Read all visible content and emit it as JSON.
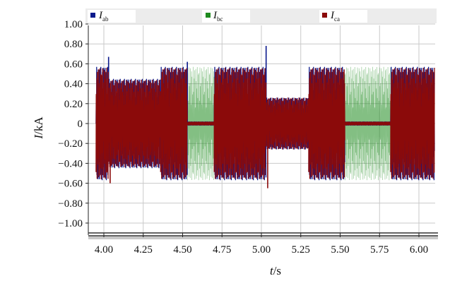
{
  "chart_data": {
    "type": "line",
    "xlabel": {
      "var": "t",
      "unit": "/s"
    },
    "ylabel": {
      "var": "I",
      "unit": "/kA"
    },
    "xlim": [
      3.95,
      6.1
    ],
    "ylim": [
      -1.05,
      1.05
    ],
    "xticks": [
      4.0,
      4.25,
      4.5,
      4.75,
      5.0,
      5.25,
      5.5,
      5.75,
      6.0
    ],
    "xtick_labels": [
      "4.00",
      "4.25",
      "4.50",
      "4.75",
      "5.00",
      "5.25",
      "5.50",
      "5.75",
      "6.00"
    ],
    "yticks": [
      1.0,
      0.8,
      0.6,
      0.4,
      0.2,
      0.0,
      -0.2,
      -0.4,
      -0.6,
      -0.8,
      -1.0
    ],
    "ytick_labels": [
      "1.00",
      "0.80",
      "0.60",
      "0.40",
      "0.20",
      "0",
      "−0.20",
      "−0.40",
      "−0.60",
      "−0.80",
      "−1.00"
    ],
    "grid": true,
    "legend_position": "top",
    "series": [
      {
        "name": "I",
        "subscript": "ab",
        "color": "#0b1a8c",
        "segments": [
          {
            "t0": 3.95,
            "t1": 4.03,
            "amp": 0.57
          },
          {
            "t0": 4.03,
            "t1": 4.36,
            "amp": 0.45
          },
          {
            "t0": 4.36,
            "t1": 4.53,
            "amp": 0.57
          },
          {
            "t0": 4.53,
            "t1": 4.7,
            "amp": 0.02
          },
          {
            "t0": 4.7,
            "t1": 5.03,
            "amp": 0.57
          },
          {
            "t0": 5.03,
            "t1": 5.3,
            "amp": 0.26
          },
          {
            "t0": 5.3,
            "t1": 5.53,
            "amp": 0.57
          },
          {
            "t0": 5.53,
            "t1": 5.82,
            "amp": 0.02
          },
          {
            "t0": 5.82,
            "t1": 6.1,
            "amp": 0.57
          }
        ],
        "spikes": [
          {
            "t": 4.03,
            "v": 0.67
          },
          {
            "t": 4.53,
            "v": 0.62
          },
          {
            "t": 5.03,
            "v": 0.78
          }
        ]
      },
      {
        "name": "I",
        "subscript": "bc",
        "color": "#1e8a1e",
        "segments": [
          {
            "t0": 4.53,
            "t1": 4.7,
            "amp": 0.57
          },
          {
            "t0": 5.53,
            "t1": 5.82,
            "amp": 0.57
          }
        ],
        "spikes": []
      },
      {
        "name": "I",
        "subscript": "ca",
        "color": "#8b0a0a",
        "segments": [
          {
            "t0": 3.95,
            "t1": 4.03,
            "amp": 0.56
          },
          {
            "t0": 4.03,
            "t1": 4.36,
            "amp": 0.44
          },
          {
            "t0": 4.36,
            "t1": 4.53,
            "amp": 0.56
          },
          {
            "t0": 4.53,
            "t1": 4.7,
            "amp": 0.02
          },
          {
            "t0": 4.7,
            "t1": 5.03,
            "amp": 0.56
          },
          {
            "t0": 5.03,
            "t1": 5.3,
            "amp": 0.26
          },
          {
            "t0": 5.3,
            "t1": 5.53,
            "amp": 0.56
          },
          {
            "t0": 5.53,
            "t1": 5.82,
            "amp": 0.02
          },
          {
            "t0": 5.82,
            "t1": 6.1,
            "amp": 0.56
          }
        ],
        "spikes": [
          {
            "t": 4.04,
            "v": -0.6
          },
          {
            "t": 5.04,
            "v": -0.65
          }
        ]
      }
    ]
  }
}
